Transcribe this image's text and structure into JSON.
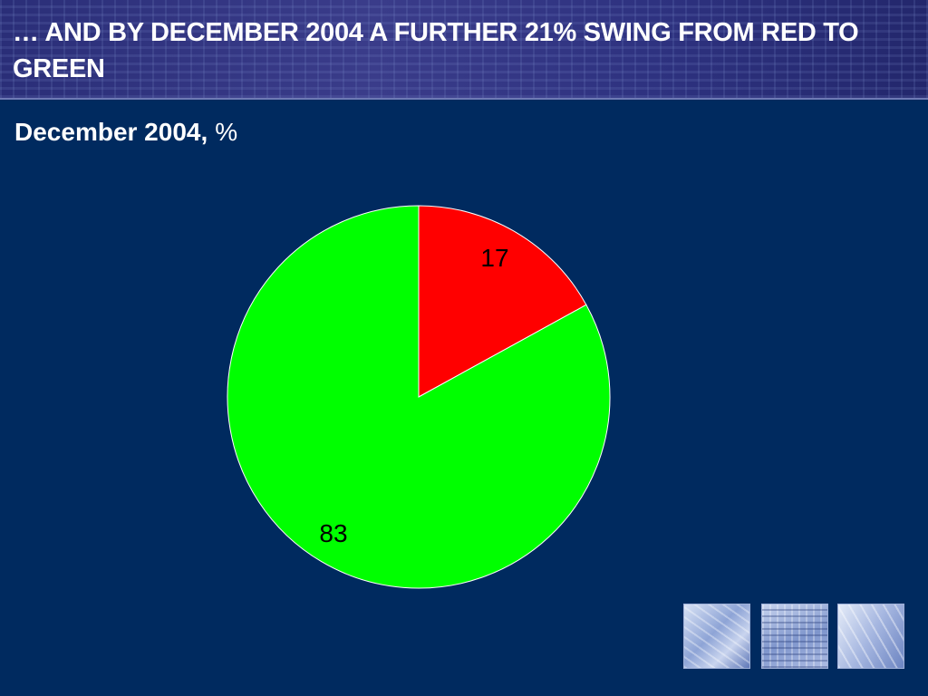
{
  "slide": {
    "title": "… AND BY DECEMBER 2004 A FURTHER 21% SWING FROM RED TO GREEN",
    "subtitle_main": "December 2004,",
    "subtitle_unit": "%"
  },
  "colors": {
    "background": "#002a5f",
    "red_slice": "#ff0000",
    "green_slice": "#00ff00"
  },
  "chart_data": {
    "type": "pie",
    "title": "",
    "slices": [
      {
        "label": "17",
        "value": 17,
        "color": "#ff0000"
      },
      {
        "label": "83",
        "value": 83,
        "color": "#00ff00"
      }
    ],
    "start_angle": "12 o'clock",
    "direction": "clockwise",
    "legend": "none"
  },
  "decorations": {
    "thumbnails": [
      "abstract-image-1",
      "abstract-image-2",
      "abstract-image-3"
    ]
  }
}
